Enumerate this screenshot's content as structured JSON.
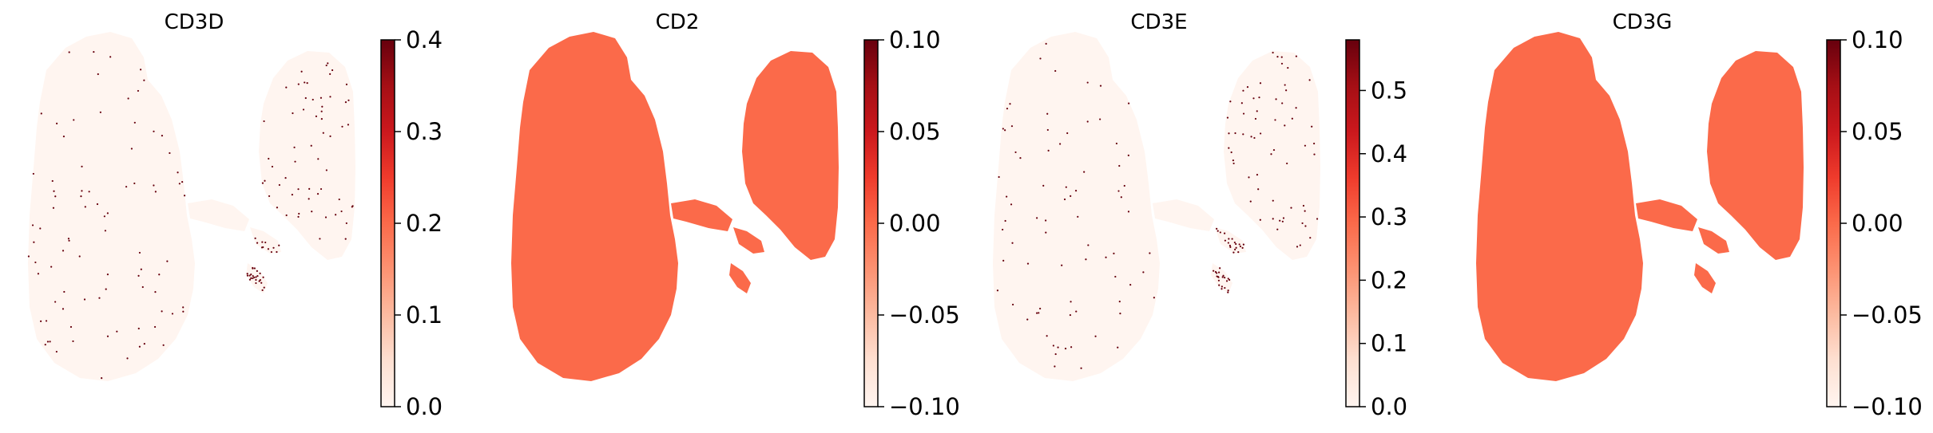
{
  "figure": {
    "title": ""
  },
  "chart_data": [
    {
      "type": "scatter",
      "title": "CD3D",
      "xlabel": "",
      "ylabel": "",
      "colormap": "Reds",
      "colorbar": {
        "min": 0.0,
        "max": 0.4,
        "ticks": [
          "0.0",
          "0.1",
          "0.2",
          "0.3",
          "0.4"
        ]
      },
      "background_value": 0.0,
      "expressing_fraction": 0.006,
      "expressing_values": [
        0.4
      ]
    },
    {
      "type": "scatter",
      "title": "CD2",
      "xlabel": "",
      "ylabel": "",
      "colormap": "Reds",
      "colorbar": {
        "min": -0.1,
        "max": 0.1,
        "ticks": [
          "−0.10",
          "−0.05",
          "0.00",
          "0.05",
          "0.10"
        ]
      },
      "background_value": 0.0,
      "expressing_fraction": 0,
      "expressing_values": []
    },
    {
      "type": "scatter",
      "title": "CD3E",
      "xlabel": "",
      "ylabel": "",
      "colormap": "Reds",
      "colorbar": {
        "min": 0.0,
        "max": 0.58,
        "ticks": [
          "0.0",
          "0.1",
          "0.2",
          "0.3",
          "0.4",
          "0.5"
        ]
      },
      "background_value": 0.0,
      "expressing_fraction": 0.006,
      "expressing_values": [
        0.58
      ]
    },
    {
      "type": "scatter",
      "title": "CD3G",
      "xlabel": "",
      "ylabel": "",
      "colormap": "Reds",
      "colorbar": {
        "min": -0.1,
        "max": 0.1,
        "ticks": [
          "−0.10",
          "−0.05",
          "0.00",
          "0.05",
          "0.10"
        ]
      },
      "background_value": 0.0,
      "expressing_fraction": 0,
      "expressing_values": []
    }
  ]
}
